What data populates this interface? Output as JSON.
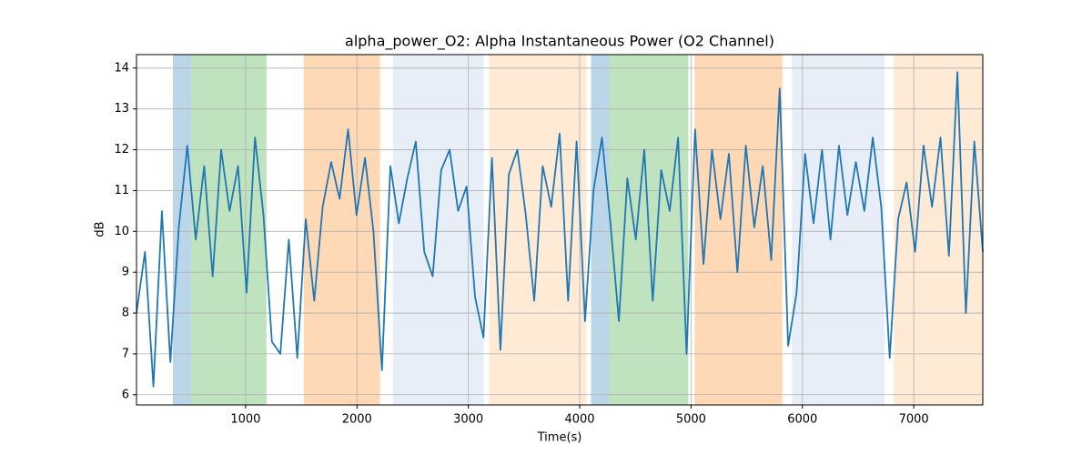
{
  "chart_data": {
    "type": "line",
    "title": "alpha_power_O2: Alpha Instantaneous Power (O2 Channel)",
    "xlabel": "Time(s)",
    "ylabel": "dB",
    "x": [
      20,
      96,
      172,
      248,
      324,
      400,
      476,
      552,
      628,
      704,
      780,
      856,
      932,
      1008,
      1084,
      1160,
      1236,
      1312,
      1388,
      1464,
      1540,
      1616,
      1692,
      1768,
      1844,
      1920,
      1996,
      2072,
      2148,
      2224,
      2300,
      2376,
      2452,
      2528,
      2604,
      2680,
      2756,
      2832,
      2908,
      2984,
      3060,
      3136,
      3212,
      3288,
      3364,
      3440,
      3516,
      3592,
      3668,
      3744,
      3820,
      3896,
      3972,
      4048,
      4124,
      4200,
      4276,
      4352,
      4428,
      4504,
      4580,
      4656,
      4732,
      4808,
      4884,
      4960,
      5036,
      5112,
      5188,
      5264,
      5340,
      5416,
      5492,
      5568,
      5644,
      5720,
      5796,
      5872,
      5948,
      6024,
      6100,
      6176,
      6252,
      6328,
      6404,
      6480,
      6556,
      6632,
      6708,
      6784,
      6860,
      6936,
      7012,
      7088,
      7164,
      7240,
      7316,
      7392,
      7468,
      7544,
      7620
    ],
    "series": [
      {
        "color": "#1f77b4",
        "values": [
          8.0,
          9.5,
          6.2,
          10.5,
          6.8,
          10.1,
          12.1,
          9.8,
          11.6,
          8.9,
          12.0,
          10.5,
          11.6,
          8.5,
          12.3,
          10.4,
          7.3,
          7.0,
          9.8,
          6.9,
          10.3,
          8.3,
          10.6,
          11.7,
          10.8,
          12.5,
          10.4,
          11.8,
          10.0,
          6.6,
          11.6,
          10.2,
          11.3,
          12.2,
          9.5,
          8.9,
          11.5,
          12.0,
          10.5,
          11.1,
          8.4,
          7.4,
          11.8,
          7.1,
          11.4,
          12.0,
          10.4,
          8.3,
          11.6,
          10.6,
          12.4,
          8.3,
          12.2,
          7.8,
          11.0,
          12.3,
          10.2,
          7.8,
          11.3,
          9.8,
          12.0,
          8.3,
          11.5,
          10.5,
          12.3,
          7.0,
          12.5,
          9.2,
          12.0,
          10.3,
          11.9,
          9.0,
          12.1,
          10.1,
          11.6,
          9.3,
          13.5,
          7.2,
          8.5,
          11.9,
          10.2,
          12.0,
          9.8,
          12.1,
          10.4,
          11.7,
          10.5,
          12.3,
          10.6,
          6.9,
          10.3,
          11.2,
          9.5,
          12.1,
          10.6,
          12.3,
          9.4,
          13.9,
          8.0,
          12.2,
          9.5
        ]
      }
    ],
    "spans": [
      {
        "start": 347,
        "end": 510,
        "color": "#1f77b4",
        "alpha": 0.3
      },
      {
        "start": 510,
        "end": 1187,
        "color": "#2ca02c",
        "alpha": 0.3
      },
      {
        "start": 1522,
        "end": 2207,
        "color": "#ff7f0e",
        "alpha": 0.3
      },
      {
        "start": 2322,
        "end": 3138,
        "color": "#aec7e8",
        "alpha": 0.3
      },
      {
        "start": 3187,
        "end": 4061,
        "color": "#ffbb78",
        "alpha": 0.3
      },
      {
        "start": 4102,
        "end": 4265,
        "color": "#1f77b4",
        "alpha": 0.3
      },
      {
        "start": 4265,
        "end": 4976,
        "color": "#2ca02c",
        "alpha": 0.3
      },
      {
        "start": 5032,
        "end": 5820,
        "color": "#ff7f0e",
        "alpha": 0.3
      },
      {
        "start": 5906,
        "end": 6739,
        "color": "#aec7e8",
        "alpha": 0.3
      },
      {
        "start": 6821,
        "end": 7620,
        "color": "#ffbb78",
        "alpha": 0.3
      }
    ],
    "xlim": [
      20,
      7620
    ],
    "ylim": [
      5.75,
      14.33
    ],
    "xticks": [
      1000,
      2000,
      3000,
      4000,
      5000,
      6000,
      7000
    ],
    "yticks": [
      6,
      7,
      8,
      9,
      10,
      11,
      12,
      13,
      14
    ],
    "grid": true
  }
}
